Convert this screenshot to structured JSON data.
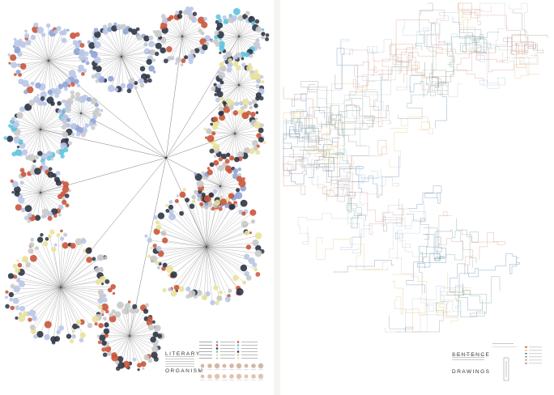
{
  "posters": {
    "left": {
      "title_line1": "LITERARY",
      "title_line2": "ORGANISM"
    },
    "right": {
      "title_line1": "SENTENCE",
      "title_line2": "DRAWINGS"
    }
  },
  "colors": {
    "blue_light": "#b9c6e6",
    "blue": "#8fa3d6",
    "cyan": "#5cc3dc",
    "red": "#c9553a",
    "navy": "#2c3444",
    "yellow": "#e9e29a",
    "grey": "#c9c9c9",
    "line": "#444444"
  }
}
